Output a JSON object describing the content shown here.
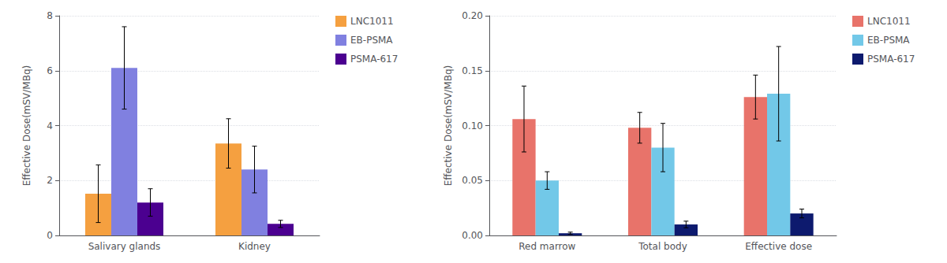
{
  "chart_data": [
    {
      "type": "bar",
      "categories": [
        "Salivary glands",
        "Kidney"
      ],
      "series": [
        {
          "name": "LNC1011",
          "color": "#F5A040",
          "values": [
            1.52,
            3.35
          ],
          "errors": [
            1.05,
            0.9
          ]
        },
        {
          "name": "EB-PSMA",
          "color": "#8080E0",
          "values": [
            6.1,
            2.4
          ],
          "errors": [
            1.5,
            0.85
          ]
        },
        {
          "name": "PSMA-617",
          "color": "#4B0090",
          "values": [
            1.2,
            0.42
          ],
          "errors": [
            0.5,
            0.13
          ]
        }
      ],
      "ylabel": "Effective Dose(mSV/MBq)",
      "ylim": [
        0,
        8
      ],
      "yticks": [
        0,
        2,
        4,
        6,
        8
      ],
      "grid": true,
      "legend": "right"
    },
    {
      "type": "bar",
      "categories": [
        "Red marrow",
        "Total body",
        "Effective dose"
      ],
      "series": [
        {
          "name": "LNC1011",
          "color": "#E8736A",
          "values": [
            0.106,
            0.098,
            0.126
          ],
          "errors": [
            0.03,
            0.014,
            0.02
          ]
        },
        {
          "name": "EB-PSMA",
          "color": "#72C8E8",
          "values": [
            0.05,
            0.08,
            0.129
          ],
          "errors": [
            0.008,
            0.022,
            0.043
          ]
        },
        {
          "name": "PSMA-617",
          "color": "#0D1A6E",
          "values": [
            0.002,
            0.01,
            0.02
          ],
          "errors": [
            0.001,
            0.003,
            0.004
          ]
        }
      ],
      "ylabel": "Effective Dose(mSV/MBq)",
      "ylim": [
        0,
        0.2
      ],
      "yticks": [
        {
          "value": 0,
          "label": "0.00"
        },
        0.05,
        {
          "value": 0.1,
          "label": "0.10"
        },
        0.15,
        {
          "value": 0.2,
          "label": "0.20"
        }
      ],
      "grid": true,
      "legend": "right"
    }
  ]
}
